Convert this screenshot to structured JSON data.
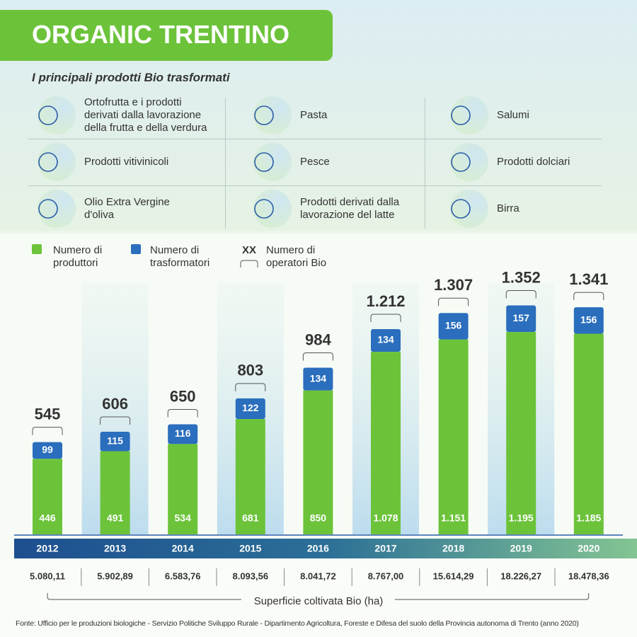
{
  "header": {
    "title": "ORGANIC TRENTINO",
    "subtitle": "I principali prodotti Bio trasformati"
  },
  "products": [
    "Ortofrutta e i prodotti derivati dalla lavorazione della frutta e della verdura",
    "Pasta",
    "Salumi",
    "Prodotti vitivinicoli",
    "Pesce",
    "Prodotti dolciari",
    "Olio Extra Vergine d'oliva",
    "Prodotti derivati dalla lavorazione del latte",
    "Birra"
  ],
  "chart_data": {
    "type": "bar",
    "stacked": true,
    "categories": [
      "2012",
      "2013",
      "2014",
      "2015",
      "2016",
      "2017",
      "2018",
      "2019",
      "2020"
    ],
    "series": [
      {
        "name": "Numero di produttori",
        "color": "#6cc33a",
        "values": [
          446,
          491,
          534,
          681,
          850,
          1078,
          1151,
          1195,
          1185
        ],
        "value_labels": [
          "446",
          "491",
          "534",
          "681",
          "850",
          "1.078",
          "1.151",
          "1.195",
          "1.185"
        ]
      },
      {
        "name": "Numero di trasformatori",
        "color": "#2a6ebd",
        "values": [
          99,
          115,
          116,
          122,
          134,
          134,
          156,
          157,
          156
        ],
        "value_labels": [
          "99",
          "115",
          "116",
          "122",
          "134",
          "134",
          "156",
          "157",
          "156"
        ]
      }
    ],
    "totals": {
      "name": "Numero di operatori Bio",
      "symbol": "XX",
      "values": [
        545,
        606,
        650,
        803,
        984,
        1212,
        1307,
        1352,
        1341
      ],
      "value_labels": [
        "545",
        "606",
        "650",
        "803",
        "984",
        "1.212",
        "1.307",
        "1.352",
        "1.341"
      ]
    },
    "ylim": [
      0,
      1400
    ]
  },
  "surface": {
    "label": "Superficie coltivata Bio (ha)",
    "values": [
      5080.11,
      5902.89,
      6583.76,
      8093.56,
      8041.72,
      8767.0,
      15614.29,
      18226.27,
      18478.36
    ],
    "value_labels": [
      "5.080,11",
      "5.902,89",
      "6.583,76",
      "8.093,56",
      "8.041,72",
      "8.767,00",
      "15.614,29",
      "18.226,27",
      "18.478,36"
    ]
  },
  "source": "Fonte: Ufficio per le produzioni biologiche - Servizio Politiche Sviluppo Rurale - Dipartimento Agricoltura, Foreste e Difesa del suolo della Provincia autonoma di Trento (anno 2020)"
}
